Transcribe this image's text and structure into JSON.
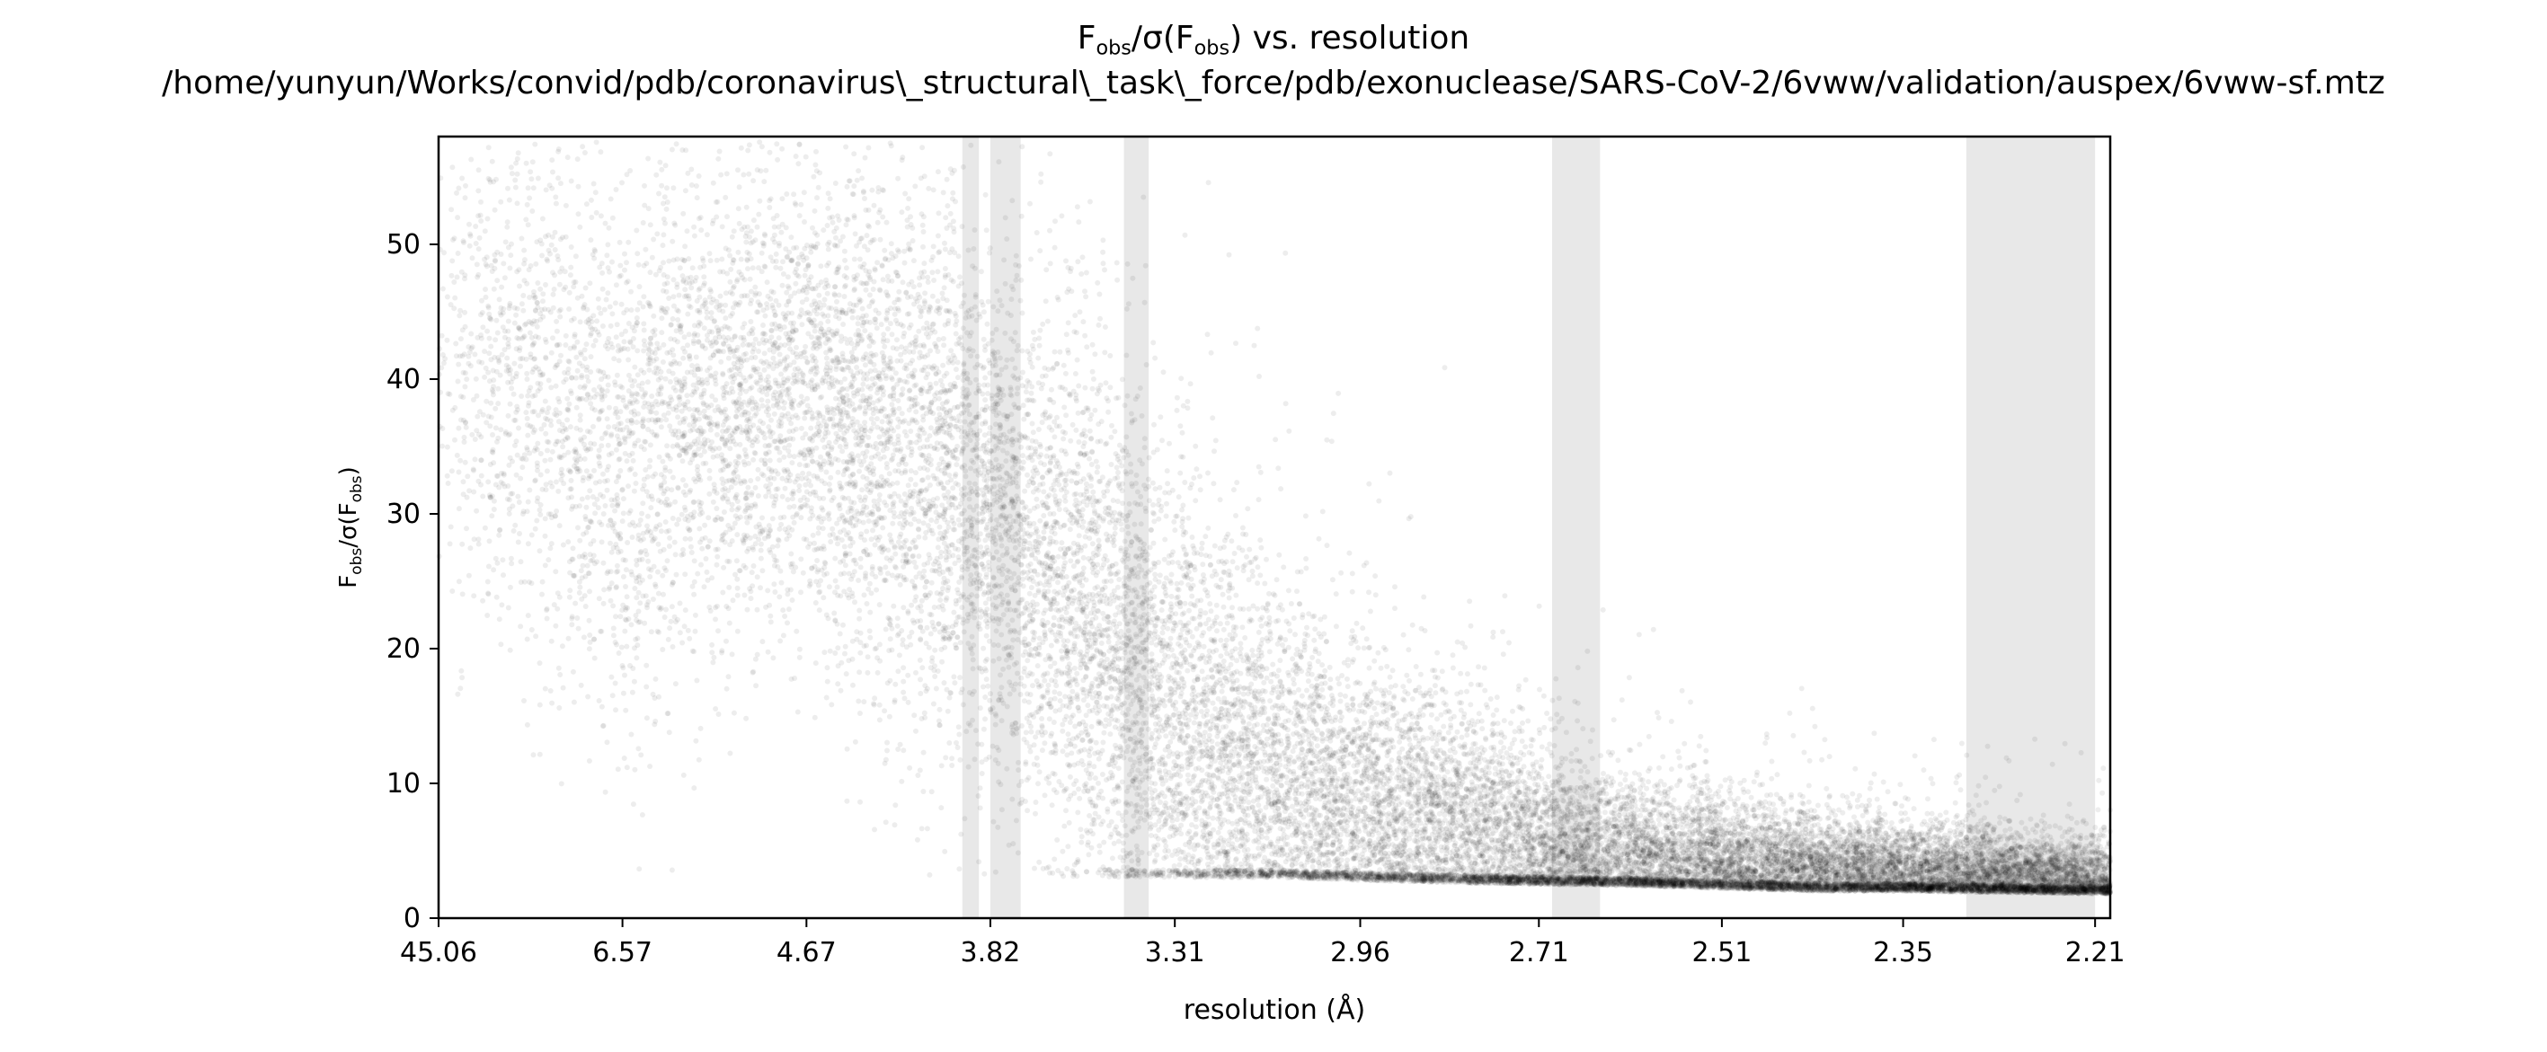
{
  "chart_data": {
    "type": "scatter",
    "title_parts": {
      "f": "F",
      "obs": "obs",
      "sigma_open": "/σ(F",
      "close_vs": ") vs. resolution"
    },
    "subtitle": "/home/yunyun/Works/convid/pdb/coronavirus\\_structural\\_task\\_force/pdb/exonuclease/SARS-CoV-2/6vww/validation/auspex/6vww-sf.mtz",
    "xlabel": "resolution (Å)",
    "ylabel_parts": {
      "f": "F",
      "obs": "obs",
      "mid": "/σ(F",
      "end": ")"
    },
    "x_scale": "reciprocal resolution",
    "x_range_A": [
      45.06,
      2.2
    ],
    "x_ticks": [
      "45.06",
      "6.57",
      "4.67",
      "3.82",
      "3.31",
      "2.96",
      "2.71",
      "2.51",
      "2.35",
      "2.21"
    ],
    "y_range": [
      0,
      58
    ],
    "y_ticks": [
      0,
      10,
      20,
      30,
      40,
      50
    ],
    "point_color": "#000000",
    "point_alpha": 0.07,
    "ice_ring_color": "#e8e8e8",
    "ice_ring_bands_A": [
      [
        3.92,
        3.86
      ],
      [
        3.82,
        3.72
      ],
      [
        3.43,
        3.37
      ],
      [
        2.694,
        2.638
      ],
      [
        2.301,
        2.21
      ]
    ],
    "density_profile": {
      "resolution_A": [
        45.06,
        12.0,
        8.0,
        6.57,
        5.5,
        4.67,
        4.2,
        3.82,
        3.6,
        3.31,
        3.1,
        2.96,
        2.8,
        2.71,
        2.6,
        2.51,
        2.42,
        2.35,
        2.28,
        2.21
      ],
      "median_Fobs_sigF": [
        38,
        41,
        38,
        34,
        38,
        38,
        36,
        30,
        24,
        14,
        9,
        7,
        5.5,
        4.5,
        3.8,
        3.5,
        3.2,
        3.0,
        2.8,
        2.5
      ],
      "spread": [
        10,
        9,
        10,
        10,
        9,
        9,
        10,
        10,
        10,
        9,
        7,
        6,
        5,
        4,
        3,
        2.5,
        2,
        2,
        1.8,
        1.6
      ],
      "floor": [
        3,
        3,
        3,
        3,
        3,
        3,
        3,
        3.2,
        3.1,
        3.0,
        3.0,
        2.8,
        2.6,
        2.5,
        2.4,
        2.2,
        2.0,
        2.0,
        1.9,
        1.8
      ]
    },
    "point_count": 26000,
    "grid": false,
    "legend": "none"
  }
}
